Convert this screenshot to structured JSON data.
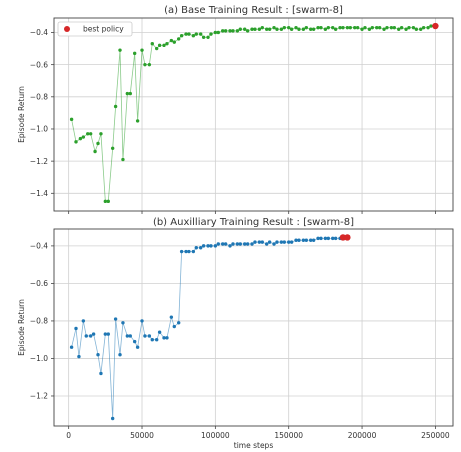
{
  "chart_data": [
    {
      "type": "line",
      "title": "(a) Base Training Result : [swarm-8]",
      "xlabel": "",
      "ylabel": "Episode Return",
      "xlim": [
        -10000,
        262000
      ],
      "ylim": [
        -1.51,
        -0.31
      ],
      "yticks": [
        -0.4,
        -0.6,
        -0.8,
        -1.0,
        -1.2,
        -1.4
      ],
      "ytick_labels": [
        "−0.4",
        "−0.6",
        "−0.8",
        "−1.0",
        "−1.2",
        "−1.4"
      ],
      "xticks": [
        0,
        50000,
        100000,
        150000,
        200000,
        250000
      ],
      "xtick_labels": [],
      "grid": true,
      "legend": {
        "position": "top-left",
        "entries": [
          {
            "label": "best policy",
            "color": "#d62728"
          }
        ]
      },
      "series": [
        {
          "color": "#2ca02c",
          "x": [
            2000,
            5000,
            8000,
            10000,
            13000,
            15000,
            18000,
            20000,
            22000,
            25000,
            27000,
            30000,
            32000,
            35000,
            37000,
            40000,
            42000,
            45000,
            47000,
            50000,
            52000,
            55000,
            57000,
            60000,
            62000,
            65000,
            67000,
            70000,
            72000,
            75000,
            77000,
            80000,
            82000,
            85000,
            87000,
            90000,
            92000,
            95000,
            97000,
            100000,
            102000,
            105000,
            107000,
            110000,
            112000,
            115000,
            117000,
            120000,
            122000,
            125000,
            127000,
            130000,
            132000,
            135000,
            137000,
            140000,
            142000,
            145000,
            147000,
            150000,
            152000,
            155000,
            157000,
            160000,
            162000,
            165000,
            167000,
            170000,
            172000,
            175000,
            177000,
            180000,
            182000,
            185000,
            187000,
            190000,
            192000,
            195000,
            197000,
            200000,
            202000,
            205000,
            207000,
            210000,
            212000,
            215000,
            217000,
            220000,
            222000,
            225000,
            227000,
            230000,
            232000,
            235000,
            237000,
            240000,
            242000,
            245000,
            247000,
            250000
          ],
          "y": [
            -0.94,
            -1.08,
            -1.06,
            -1.05,
            -1.03,
            -1.03,
            -1.14,
            -1.09,
            -1.03,
            -1.45,
            -1.45,
            -1.12,
            -0.86,
            -0.51,
            -1.19,
            -0.78,
            -0.78,
            -0.53,
            -0.95,
            -0.51,
            -0.6,
            -0.6,
            -0.47,
            -0.5,
            -0.48,
            -0.48,
            -0.47,
            -0.45,
            -0.46,
            -0.44,
            -0.42,
            -0.41,
            -0.41,
            -0.42,
            -0.41,
            -0.41,
            -0.43,
            -0.43,
            -0.41,
            -0.4,
            -0.4,
            -0.39,
            -0.39,
            -0.39,
            -0.39,
            -0.39,
            -0.38,
            -0.38,
            -0.39,
            -0.38,
            -0.38,
            -0.38,
            -0.37,
            -0.38,
            -0.38,
            -0.37,
            -0.38,
            -0.38,
            -0.37,
            -0.37,
            -0.38,
            -0.37,
            -0.38,
            -0.38,
            -0.37,
            -0.38,
            -0.38,
            -0.37,
            -0.37,
            -0.38,
            -0.37,
            -0.37,
            -0.38,
            -0.37,
            -0.37,
            -0.37,
            -0.37,
            -0.37,
            -0.37,
            -0.38,
            -0.37,
            -0.38,
            -0.37,
            -0.37,
            -0.37,
            -0.38,
            -0.37,
            -0.37,
            -0.37,
            -0.38,
            -0.37,
            -0.38,
            -0.37,
            -0.37,
            -0.38,
            -0.38,
            -0.37,
            -0.37,
            -0.36,
            -0.36
          ]
        }
      ],
      "best_policy": [
        {
          "x": 250000,
          "y": -0.36
        }
      ]
    },
    {
      "type": "line",
      "title": "(b) Auxilliary Training Result : [swarm-8]",
      "xlabel": "time steps",
      "ylabel": "Episode Return",
      "xlim": [
        -10000,
        262000
      ],
      "ylim": [
        -1.36,
        -0.31
      ],
      "yticks": [
        -0.4,
        -0.6,
        -0.8,
        -1.0,
        -1.2
      ],
      "ytick_labels": [
        "−0.4",
        "−0.6",
        "−0.8",
        "−1.0",
        "−1.2"
      ],
      "xticks": [
        0,
        50000,
        100000,
        150000,
        200000,
        250000
      ],
      "xtick_labels": [
        "0",
        "50000",
        "100000",
        "150000",
        "200000",
        "250000"
      ],
      "grid": true,
      "series": [
        {
          "color": "#1f77b4",
          "x": [
            2000,
            5000,
            7000,
            10000,
            12000,
            15000,
            17000,
            20000,
            22000,
            25000,
            27000,
            30000,
            32000,
            35000,
            37000,
            40000,
            42000,
            45000,
            47000,
            50000,
            52000,
            55000,
            57000,
            60000,
            62000,
            65000,
            67000,
            70000,
            72000,
            75000,
            77000,
            80000,
            82000,
            85000,
            87000,
            90000,
            92000,
            95000,
            97000,
            100000,
            102000,
            105000,
            107000,
            110000,
            112000,
            115000,
            117000,
            120000,
            122000,
            125000,
            127000,
            130000,
            132000,
            135000,
            137000,
            140000,
            142000,
            145000,
            147000,
            150000,
            152000,
            155000,
            157000,
            160000,
            162000,
            165000,
            167000,
            170000,
            172000,
            175000,
            177000,
            180000,
            182000,
            185000,
            187000,
            190000
          ],
          "y": [
            -0.94,
            -0.84,
            -0.99,
            -0.8,
            -0.88,
            -0.88,
            -0.87,
            -0.98,
            -1.08,
            -0.87,
            -0.87,
            -1.32,
            -0.79,
            -0.98,
            -0.81,
            -0.88,
            -0.88,
            -0.91,
            -0.94,
            -0.8,
            -0.88,
            -0.88,
            -0.9,
            -0.9,
            -0.86,
            -0.89,
            -0.89,
            -0.78,
            -0.83,
            -0.81,
            -0.43,
            -0.43,
            -0.43,
            -0.43,
            -0.41,
            -0.41,
            -0.4,
            -0.4,
            -0.4,
            -0.4,
            -0.39,
            -0.39,
            -0.39,
            -0.4,
            -0.39,
            -0.39,
            -0.39,
            -0.39,
            -0.39,
            -0.39,
            -0.38,
            -0.38,
            -0.38,
            -0.39,
            -0.38,
            -0.39,
            -0.38,
            -0.38,
            -0.38,
            -0.38,
            -0.38,
            -0.37,
            -0.37,
            -0.37,
            -0.37,
            -0.37,
            -0.37,
            -0.36,
            -0.36,
            -0.36,
            -0.36,
            -0.36,
            -0.36,
            -0.36,
            -0.36,
            -0.36
          ]
        }
      ],
      "best_policy": [
        {
          "x": 187000,
          "y": -0.355
        },
        {
          "x": 190000,
          "y": -0.355
        }
      ]
    }
  ]
}
